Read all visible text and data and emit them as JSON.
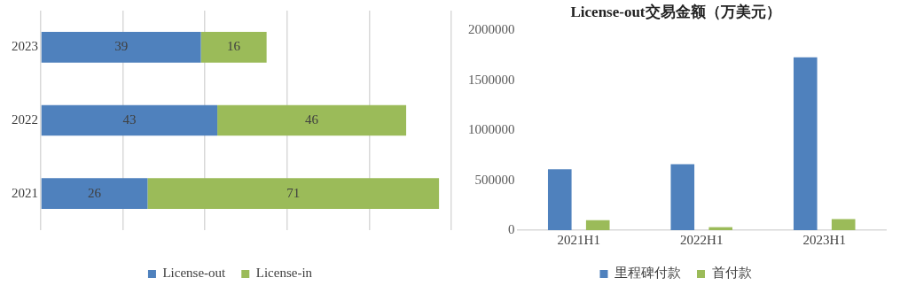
{
  "chart_data": [
    {
      "type": "bar",
      "orientation": "horizontal",
      "stacked": true,
      "categories": [
        "2023",
        "2022",
        "2021"
      ],
      "series": [
        {
          "name": "License-out",
          "color": "#4f81bd",
          "values": [
            39,
            43,
            26
          ]
        },
        {
          "name": "License-in",
          "color": "#9bbb59",
          "values": [
            16,
            46,
            71
          ]
        }
      ],
      "data_labels": true,
      "tick_labels": "y",
      "grid": "x",
      "legend": "bottom"
    },
    {
      "type": "bar",
      "title": "License-out交易金额（万美元）",
      "categories": [
        "2021H1",
        "2022H1",
        "2023H1"
      ],
      "series": [
        {
          "name": "里程碑付款",
          "color": "#4f81bd",
          "values": [
            610000,
            660000,
            1730000
          ]
        },
        {
          "name": "首付款",
          "color": "#9bbb59",
          "values": [
            100000,
            30000,
            110000
          ]
        }
      ],
      "ylim": [
        0,
        2000000
      ],
      "yticks": [
        0,
        500000,
        1000000,
        1500000,
        2000000
      ],
      "grid": false,
      "legend": "bottom"
    }
  ]
}
